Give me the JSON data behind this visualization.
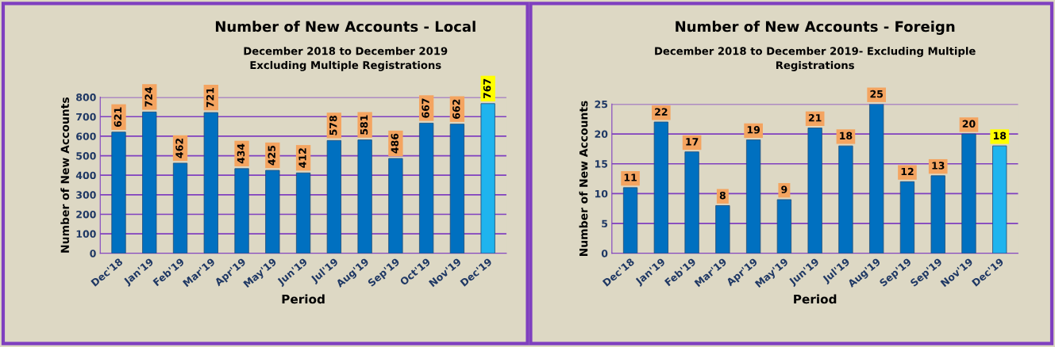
{
  "chart_data": [
    {
      "type": "bar",
      "title": "Number of New Accounts - Local",
      "subtitle": "December 2018 to December 2019\nExcluding Multiple Registrations",
      "xlabel": "Period",
      "ylabel": "Number of New Accounts",
      "categories": [
        "Dec'18",
        "Jan'19",
        "Feb'19",
        "Mar'19",
        "Apr'19",
        "May'19",
        "Jun'19",
        "Jul'19",
        "Aug'19",
        "Sep'19",
        "Oct'19",
        "Nov'19",
        "Dec'19"
      ],
      "values": [
        621,
        724,
        462,
        721,
        434,
        425,
        412,
        578,
        581,
        486,
        667,
        662,
        767
      ],
      "colors": [
        "#0070c0",
        "#0070c0",
        "#0070c0",
        "#0070c0",
        "#0070c0",
        "#0070c0",
        "#0070c0",
        "#0070c0",
        "#0070c0",
        "#0070c0",
        "#0070c0",
        "#0070c0",
        "#1fb4ee"
      ],
      "ylim": [
        0,
        800
      ],
      "yticks": [
        0,
        100,
        200,
        300,
        400,
        500,
        600,
        700,
        800
      ],
      "grid": "y",
      "data_labels": true
    },
    {
      "type": "bar",
      "title": "Number of New Accounts - Foreign",
      "subtitle": "December 2018 to December 2019- Excluding Multiple\nRegistrations",
      "xlabel": "Period",
      "ylabel": "Number of New Accounts",
      "categories": [
        "Dec'18",
        "Jan'19",
        "Feb'19",
        "Mar'19",
        "Apr'19",
        "May'19",
        "Jun'19",
        "Jul'19",
        "Aug'19",
        "Sep'19",
        "Sep'19",
        "Nov'19",
        "Dec'19"
      ],
      "values": [
        11,
        22,
        17,
        8,
        19,
        9,
        21,
        18,
        25,
        12,
        13,
        20,
        18
      ],
      "colors": [
        "#0070c0",
        "#0070c0",
        "#0070c0",
        "#0070c0",
        "#0070c0",
        "#0070c0",
        "#0070c0",
        "#0070c0",
        "#0070c0",
        "#0070c0",
        "#0070c0",
        "#0070c0",
        "#1fb4ee"
      ],
      "ylim": [
        0,
        25
      ],
      "yticks": [
        0,
        5,
        10,
        15,
        20,
        25
      ],
      "grid": "y",
      "data_labels": true
    }
  ]
}
